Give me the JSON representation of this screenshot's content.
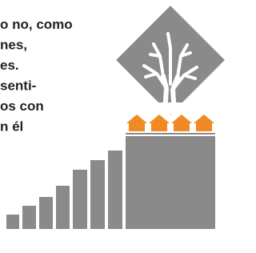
{
  "text_lines": [
    "o no, como",
    "nes,",
    "es.",
    "senti-",
    "os con",
    "n él"
  ]
}
